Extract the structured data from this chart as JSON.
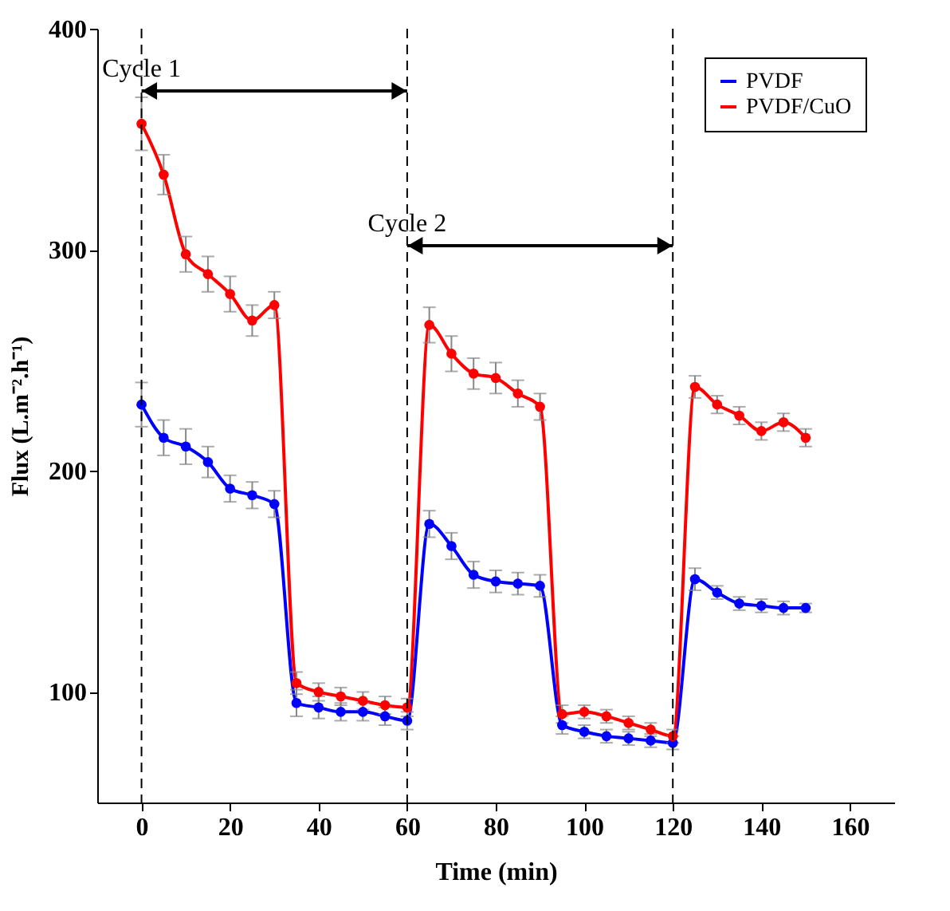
{
  "chart_data": {
    "type": "line",
    "xlabel": "Time (min)",
    "ylabel": "Flux (L.m⁻².h⁻¹)",
    "x": [
      0,
      5,
      10,
      15,
      20,
      25,
      30,
      35,
      40,
      45,
      50,
      55,
      60,
      65,
      70,
      75,
      80,
      85,
      90,
      95,
      100,
      105,
      110,
      115,
      120,
      125,
      130,
      135,
      140,
      145,
      150
    ],
    "series": [
      {
        "name": "PVDF",
        "color": "#0000ff",
        "values": [
          230,
          215,
          211,
          204,
          192,
          189,
          185,
          95,
          93,
          91,
          91,
          89,
          87,
          176,
          166,
          153,
          150,
          149,
          148,
          85,
          82,
          80,
          79,
          78,
          77,
          151,
          145,
          140,
          139,
          138,
          138
        ],
        "errors": [
          10,
          8,
          8,
          7,
          6,
          6,
          6,
          6,
          5,
          4,
          4,
          4,
          4,
          6,
          6,
          6,
          5,
          5,
          5,
          4,
          3,
          3,
          3,
          3,
          3,
          5,
          3,
          3,
          3,
          3,
          2
        ]
      },
      {
        "name": "PVDF/CuO",
        "color": "#ff0000",
        "values": [
          357,
          334,
          298,
          289,
          280,
          268,
          275,
          104,
          100,
          98,
          96,
          94,
          93,
          266,
          253,
          244,
          242,
          235,
          229,
          90,
          91,
          89,
          86,
          83,
          80,
          238,
          230,
          225,
          218,
          222,
          215
        ],
        "errors": [
          12,
          9,
          8,
          8,
          8,
          7,
          6,
          5,
          4,
          4,
          4,
          4,
          4,
          8,
          8,
          7,
          7,
          6,
          6,
          4,
          3,
          3,
          3,
          3,
          3,
          5,
          4,
          4,
          4,
          4,
          4
        ]
      }
    ],
    "xlim": [
      -10,
      170
    ],
    "ylim": [
      50,
      400
    ],
    "xticks": [
      0,
      20,
      40,
      60,
      80,
      100,
      120,
      140,
      160
    ],
    "yticks": [
      100,
      200,
      300,
      400
    ],
    "ref_lines": [
      {
        "axis": "x",
        "value": 0,
        "line_style": "dashed",
        "color": "#000000"
      },
      {
        "axis": "x",
        "value": 60,
        "line_style": "dashed",
        "color": "#000000"
      },
      {
        "axis": "x",
        "value": 120,
        "line_style": "dashed",
        "color": "#000000"
      }
    ],
    "annotations": [
      "Cycle 1",
      "Cycle 2"
    ],
    "marker": "circle",
    "line_style": "solid",
    "grid": false,
    "legend": "top right"
  }
}
